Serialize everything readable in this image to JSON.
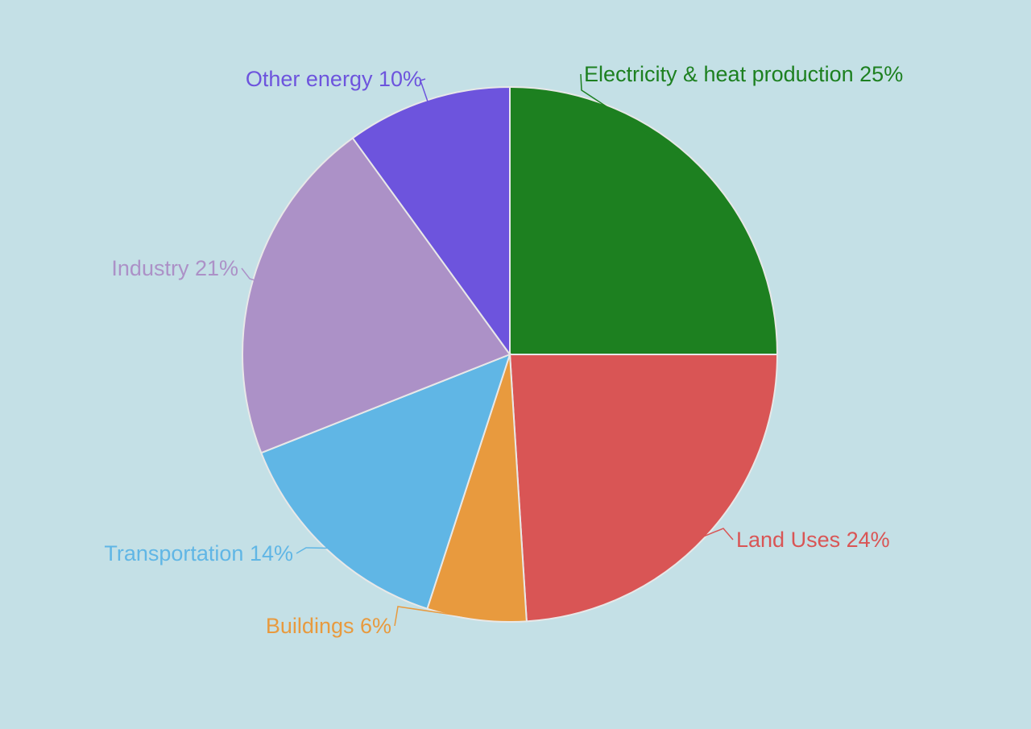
{
  "chart_data": {
    "type": "pie",
    "background_color": "#c4e0e6",
    "slice_border_color": "#e8e8e8",
    "start_angle": "12 o'clock",
    "direction": "clockwise",
    "labels_shown": "category and percent, outside with leader lines",
    "slices": [
      {
        "label": "Electricity & heat production",
        "value": 25,
        "percent_text": "25%",
        "color": "#1d8020"
      },
      {
        "label": "Land Uses",
        "value": 24,
        "percent_text": "24%",
        "color": "#d95555"
      },
      {
        "label": "Buildings",
        "value": 6,
        "percent_text": "6%",
        "color": "#e89a3e"
      },
      {
        "label": "Transportation",
        "value": 14,
        "percent_text": "14%",
        "color": "#60b6e5"
      },
      {
        "label": "Industry",
        "value": 21,
        "percent_text": "21%",
        "color": "#ac91c7"
      },
      {
        "label": "Other energy",
        "value": 10,
        "percent_text": "10%",
        "color": "#6d54dd"
      }
    ]
  }
}
